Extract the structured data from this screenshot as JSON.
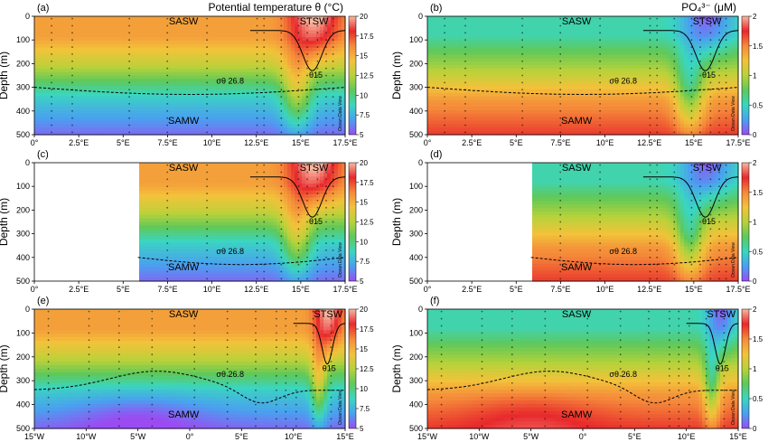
{
  "chart_data": {
    "type": "heatmap",
    "panels": [
      {
        "id": "a",
        "label": "(a)",
        "title": "Potential temperature θ (°C)",
        "variable": "theta",
        "xaxis": "lon_east",
        "xticks": [
          "0°",
          "2.5°E",
          "5°E",
          "7.5°E",
          "10°E",
          "12.5°E",
          "15°E",
          "17.5°E"
        ],
        "xlim": [
          0,
          18
        ],
        "ylim": [
          0,
          500
        ],
        "water_masses": [
          "SASW",
          "STSW",
          "SAMW"
        ],
        "contour_labels": [
          "θ15",
          "σθ 26.8"
        ],
        "data_start": 0
      },
      {
        "id": "b",
        "label": "(b)",
        "title": "PO₄³⁻ (μM)",
        "variable": "po4",
        "xaxis": "lon_east",
        "xticks": [
          "0°",
          "2.5°E",
          "5°E",
          "7.5°E",
          "10°E",
          "12.5°E",
          "15°E",
          "17.5°E"
        ],
        "xlim": [
          0,
          18
        ],
        "ylim": [
          0,
          500
        ],
        "water_masses": [
          "SASW",
          "STSW",
          "SAMW"
        ],
        "contour_labels": [
          "θ15",
          "σθ 26.8"
        ],
        "data_start": 0
      },
      {
        "id": "c",
        "label": "(c)",
        "title": "",
        "variable": "theta",
        "xaxis": "lon_east",
        "xticks": [
          "0°",
          "2.5°E",
          "5°E",
          "7.5°E",
          "10°E",
          "12.5°E",
          "15°E",
          "17.5°E"
        ],
        "xlim": [
          0,
          18
        ],
        "ylim": [
          0,
          500
        ],
        "water_masses": [
          "SASW",
          "STSW",
          "SAMW"
        ],
        "contour_labels": [
          "θ15",
          "σθ 26.8"
        ],
        "data_start": 6
      },
      {
        "id": "d",
        "label": "(d)",
        "title": "",
        "variable": "po4",
        "xaxis": "lon_east",
        "xticks": [
          "0°",
          "2.5°E",
          "5°E",
          "7.5°E",
          "10°E",
          "12.5°E",
          "15°E",
          "17.5°E"
        ],
        "xlim": [
          0,
          18
        ],
        "ylim": [
          0,
          500
        ],
        "water_masses": [
          "SASW",
          "STSW",
          "SAMW"
        ],
        "contour_labels": [
          "θ15",
          "σθ 26.8"
        ],
        "data_start": 6
      },
      {
        "id": "e",
        "label": "(e)",
        "title": "",
        "variable": "theta",
        "xaxis": "lon_west",
        "xticks": [
          "15°W",
          "10°W",
          "5°W",
          "0°",
          "5°E",
          "10°E",
          "15°E"
        ],
        "xlim": [
          -15,
          18
        ],
        "ylim": [
          0,
          500
        ],
        "water_masses": [
          "SASW",
          "STSW",
          "SAMW"
        ],
        "contour_labels": [
          "θ15",
          "σθ 26.8"
        ],
        "data_start": -15
      },
      {
        "id": "f",
        "label": "(f)",
        "title": "",
        "variable": "po4",
        "xaxis": "lon_west",
        "xticks": [
          "15°W",
          "10°W",
          "5°W",
          "0°",
          "5°E",
          "10°E",
          "15°E"
        ],
        "xlim": [
          -15,
          18
        ],
        "ylim": [
          0,
          500
        ],
        "water_masses": [
          "SASW",
          "STSW",
          "SAMW"
        ],
        "contour_labels": [
          "θ15",
          "σθ 26.8"
        ],
        "data_start": -15
      }
    ],
    "ylabel": "Depth (m)",
    "yticks": [
      "0",
      "100",
      "200",
      "300",
      "400",
      "500"
    ],
    "colorbars": {
      "theta": {
        "range": [
          5,
          20
        ],
        "ticks": [
          "20",
          "17.5",
          "15",
          "12.5",
          "10",
          "7.5",
          "5"
        ]
      },
      "po4": {
        "range": [
          0,
          2
        ],
        "ticks": [
          "2",
          "1.5",
          "1",
          "0.5",
          "0"
        ]
      }
    },
    "watermark": "Ocean Data View"
  },
  "colors": {
    "ramp": [
      "#9a4cf2",
      "#4aa0f0",
      "#3ad6c0",
      "#5fc85a",
      "#b8d23a",
      "#f2c23a",
      "#f58a3a",
      "#e8282c",
      "#f7b9a0"
    ],
    "contour": "#000000",
    "blank": "#ffffff"
  }
}
